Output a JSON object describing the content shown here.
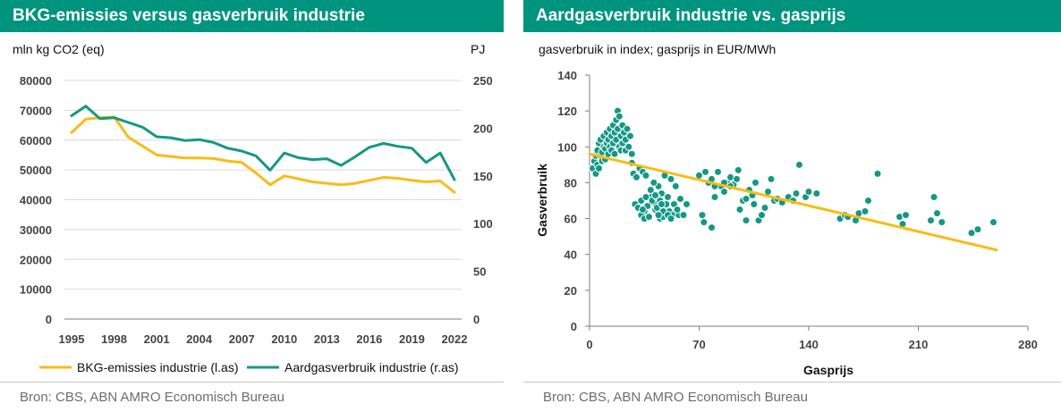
{
  "colors": {
    "header_bg": "#00947f",
    "series_yellow": "#f7bd16",
    "series_green": "#149886",
    "grid": "#d9d9d9"
  },
  "left": {
    "title": "BKG-emissies versus gasverbruik industrie",
    "y_left_label": "mln kg CO2 (eq)",
    "y_right_label": "PJ",
    "source": "Bron: CBS, ABN AMRO Economisch Bureau",
    "chart_data": {
      "type": "line",
      "x": [
        1995,
        1996,
        1997,
        1998,
        1999,
        2000,
        2001,
        2002,
        2003,
        2004,
        2005,
        2006,
        2007,
        2008,
        2009,
        2010,
        2011,
        2012,
        2013,
        2014,
        2015,
        2016,
        2017,
        2018,
        2019,
        2020,
        2021,
        2022
      ],
      "x_ticks": [
        "1995",
        "1998",
        "2001",
        "2004",
        "2007",
        "2010",
        "2013",
        "2016",
        "2019",
        "2022"
      ],
      "y_left_ticks": [
        "0",
        "10000",
        "20000",
        "30000",
        "40000",
        "50000",
        "60000",
        "70000",
        "80000"
      ],
      "y_right_ticks": [
        "0",
        "50",
        "100",
        "150",
        "200",
        "250"
      ],
      "ylim_left": [
        0,
        80000
      ],
      "ylim_right": [
        0,
        250
      ],
      "grid": true,
      "legend_position": "bottom",
      "series": [
        {
          "name": "BKG-emissies industrie (l.as)",
          "axis": "left",
          "color": "#f7bd16",
          "values": [
            62500,
            67000,
            67500,
            67800,
            61000,
            58000,
            55000,
            54500,
            54000,
            54000,
            53800,
            53000,
            52500,
            49000,
            45000,
            48000,
            47000,
            46000,
            45500,
            45000,
            45500,
            46500,
            47500,
            47200,
            46500,
            46000,
            46300,
            42500
          ]
        },
        {
          "name": "Aardgasverbruik industrie (r.as)",
          "axis": "right",
          "color": "#149886",
          "values": [
            213,
            223,
            210,
            211,
            206,
            201,
            191,
            190,
            187,
            188,
            185,
            179,
            176,
            171,
            156,
            174,
            169,
            167,
            168,
            161,
            170,
            180,
            184,
            181,
            179,
            164,
            174,
            146
          ]
        }
      ]
    }
  },
  "right": {
    "title": "Aardgasverbruik industrie vs. gasprijs",
    "subtitle": "gasverbruik in index; gasprijs in EUR/MWh",
    "source": "Bron: CBS, ABN AMRO Economisch Bureau",
    "chart_data": {
      "type": "scatter",
      "xlabel": "Gasprijs",
      "ylabel": "Gasverbruik",
      "xlim": [
        0,
        280
      ],
      "ylim": [
        0,
        140
      ],
      "x_ticks": [
        "0",
        "70",
        "140",
        "210",
        "280"
      ],
      "y_ticks": [
        "0",
        "20",
        "40",
        "60",
        "80",
        "100",
        "120",
        "140"
      ],
      "grid": false,
      "trendline": {
        "x": [
          0,
          260
        ],
        "y": [
          96,
          42.5
        ],
        "color": "#f7bd16"
      },
      "points": [
        [
          2,
          88
        ],
        [
          3,
          92
        ],
        [
          4,
          85
        ],
        [
          4,
          95
        ],
        [
          5,
          98
        ],
        [
          5,
          90
        ],
        [
          6,
          102
        ],
        [
          6,
          88
        ],
        [
          7,
          95
        ],
        [
          7,
          104
        ],
        [
          8,
          97
        ],
        [
          8,
          92
        ],
        [
          9,
          100
        ],
        [
          9,
          106
        ],
        [
          10,
          99
        ],
        [
          10,
          93
        ],
        [
          11,
          102
        ],
        [
          11,
          108
        ],
        [
          12,
          96
        ],
        [
          12,
          104
        ],
        [
          13,
          110
        ],
        [
          13,
          100
        ],
        [
          14,
          98
        ],
        [
          14,
          106
        ],
        [
          15,
          112
        ],
        [
          15,
          102
        ],
        [
          16,
          108
        ],
        [
          16,
          96
        ],
        [
          17,
          115
        ],
        [
          17,
          104
        ],
        [
          18,
          120
        ],
        [
          18,
          110
        ],
        [
          19,
          117
        ],
        [
          19,
          100
        ],
        [
          20,
          106
        ],
        [
          20,
          98
        ],
        [
          21,
          112
        ],
        [
          21,
          102
        ],
        [
          22,
          108
        ],
        [
          23,
          104
        ],
        [
          23,
          98
        ],
        [
          24,
          110
        ],
        [
          25,
          100
        ],
        [
          26,
          106
        ],
        [
          27,
          96
        ],
        [
          27,
          91
        ],
        [
          28,
          85
        ],
        [
          30,
          83
        ],
        [
          32,
          88
        ],
        [
          34,
          86
        ],
        [
          36,
          84
        ],
        [
          29,
          68
        ],
        [
          31,
          66
        ],
        [
          33,
          70
        ],
        [
          35,
          64
        ],
        [
          37,
          67
        ],
        [
          39,
          72
        ],
        [
          41,
          69
        ],
        [
          33,
          62
        ],
        [
          35,
          60
        ],
        [
          38,
          61
        ],
        [
          40,
          70
        ],
        [
          42,
          65
        ],
        [
          44,
          78
        ],
        [
          46,
          74
        ],
        [
          48,
          84
        ],
        [
          50,
          72
        ],
        [
          43,
          66
        ],
        [
          45,
          60
        ],
        [
          47,
          61
        ],
        [
          49,
          66
        ],
        [
          51,
          64
        ],
        [
          53,
          62
        ],
        [
          55,
          78
        ],
        [
          57,
          62
        ],
        [
          52,
          82
        ],
        [
          54,
          68
        ],
        [
          58,
          71
        ],
        [
          60,
          62
        ],
        [
          62,
          68
        ],
        [
          39,
          76
        ],
        [
          41,
          80
        ],
        [
          43,
          72
        ],
        [
          45,
          70
        ],
        [
          47,
          64
        ],
        [
          49,
          68
        ],
        [
          42,
          73
        ],
        [
          44,
          62
        ],
        [
          46,
          68
        ],
        [
          50,
          62
        ],
        [
          52,
          60
        ],
        [
          56,
          65
        ],
        [
          34,
          65
        ],
        [
          36,
          72
        ],
        [
          70,
          84
        ],
        [
          72,
          62
        ],
        [
          73,
          58
        ],
        [
          74,
          86
        ],
        [
          76,
          80
        ],
        [
          78,
          82
        ],
        [
          80,
          72
        ],
        [
          82,
          86
        ],
        [
          84,
          78
        ],
        [
          86,
          75
        ],
        [
          88,
          80
        ],
        [
          90,
          83
        ],
        [
          92,
          79
        ],
        [
          94,
          82
        ],
        [
          95,
          87
        ],
        [
          96,
          65
        ],
        [
          98,
          70
        ],
        [
          100,
          59
        ],
        [
          102,
          76
        ],
        [
          104,
          73
        ],
        [
          106,
          80
        ],
        [
          108,
          59
        ],
        [
          110,
          62
        ],
        [
          112,
          66
        ],
        [
          114,
          75
        ],
        [
          116,
          82
        ],
        [
          118,
          70
        ],
        [
          120,
          71
        ],
        [
          123,
          69
        ],
        [
          127,
          72
        ],
        [
          130,
          70
        ],
        [
          132,
          74
        ],
        [
          134,
          90
        ],
        [
          138,
          72
        ],
        [
          140,
          75
        ],
        [
          145,
          74
        ],
        [
          184,
          85
        ],
        [
          78,
          55
        ],
        [
          80,
          78
        ],
        [
          86,
          80
        ],
        [
          90,
          78
        ],
        [
          100,
          71
        ],
        [
          105,
          68
        ],
        [
          160,
          60
        ],
        [
          163,
          62
        ],
        [
          165,
          61
        ],
        [
          170,
          59
        ],
        [
          172,
          63
        ],
        [
          176,
          64
        ],
        [
          178,
          70
        ],
        [
          198,
          61
        ],
        [
          200,
          57
        ],
        [
          202,
          62
        ],
        [
          218,
          59
        ],
        [
          220,
          72
        ],
        [
          222,
          63
        ],
        [
          225,
          58
        ],
        [
          244,
          52
        ],
        [
          248,
          54
        ],
        [
          258,
          58
        ]
      ]
    }
  }
}
